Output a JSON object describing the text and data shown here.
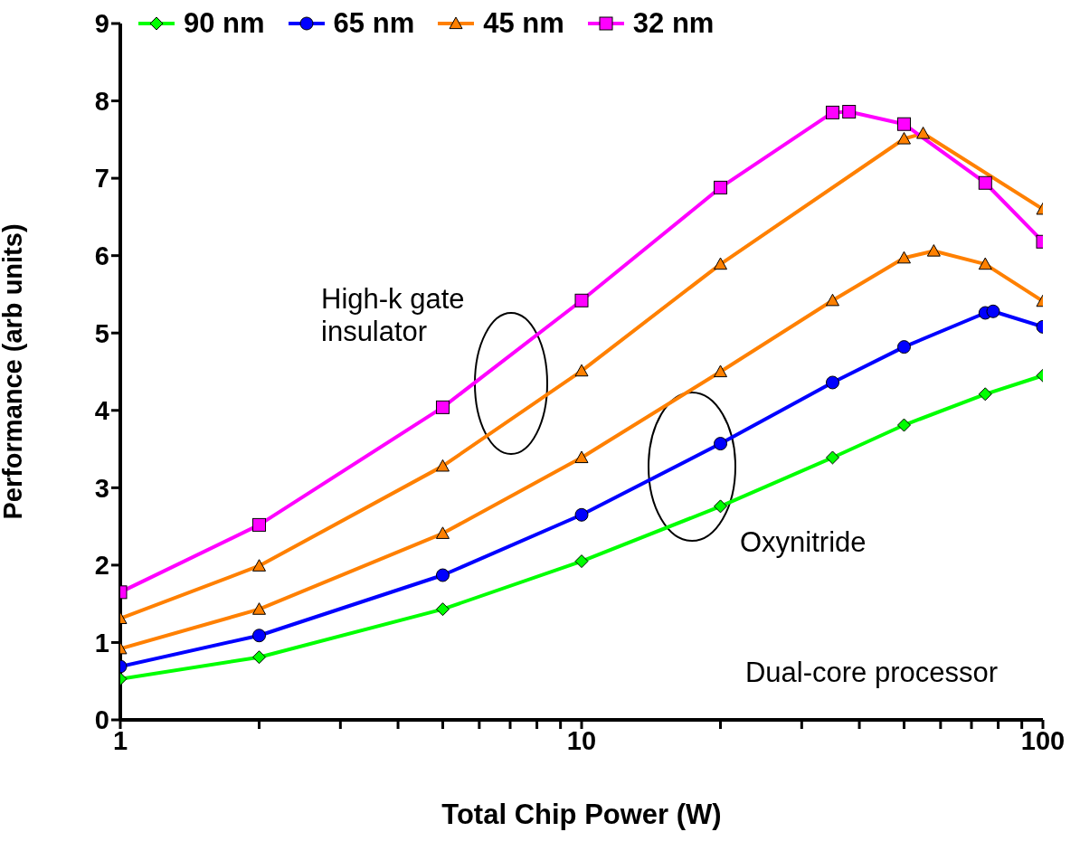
{
  "chart_data": {
    "type": "line",
    "xlabel": "Total Chip Power (W)",
    "ylabel": "Performance (arb units)",
    "log": "x",
    "xlim": [
      1,
      100
    ],
    "xticks": [
      1,
      {
        "value": 2,
        "label": null
      },
      {
        "value": 3,
        "label": null
      },
      {
        "value": 4,
        "label": null
      },
      {
        "value": 5,
        "label": null
      },
      {
        "value": 6,
        "label": null
      },
      {
        "value": 7,
        "label": null
      },
      {
        "value": 8,
        "label": null
      },
      {
        "value": 9,
        "label": null
      },
      10,
      {
        "value": 20,
        "label": null
      },
      {
        "value": 30,
        "label": null
      },
      {
        "value": 40,
        "label": null
      },
      {
        "value": 50,
        "label": null
      },
      {
        "value": 60,
        "label": null
      },
      {
        "value": 70,
        "label": null
      },
      {
        "value": 80,
        "label": null
      },
      {
        "value": 90,
        "label": null
      },
      100
    ],
    "ylim": [
      0,
      9
    ],
    "yticks": [
      0,
      1,
      2,
      3,
      4,
      5,
      6,
      7,
      8,
      9
    ],
    "legend": "top",
    "line_style": "solid",
    "series": [
      {
        "name": "90 nm",
        "color": "#00ff00",
        "marker": "diamond",
        "x": [
          1,
          2,
          5,
          10,
          20,
          35,
          50,
          75,
          100
        ],
        "values": [
          0.53,
          0.81,
          1.43,
          2.05,
          2.76,
          3.39,
          3.81,
          4.21,
          4.45
        ]
      },
      {
        "name": "65 nm",
        "color": "#0000ff",
        "marker": "circle",
        "x": [
          1,
          2,
          5,
          10,
          20,
          35,
          50,
          75,
          78,
          100
        ],
        "values": [
          0.69,
          1.09,
          1.87,
          2.65,
          3.57,
          4.36,
          4.82,
          5.26,
          5.28,
          5.08
        ]
      },
      {
        "name": "45 nm",
        "color": "#ff8000",
        "marker": "triangle",
        "x": [
          1,
          2,
          5,
          10,
          20,
          35,
          50,
          58,
          75,
          100
        ],
        "values": [
          0.92,
          1.43,
          2.41,
          3.39,
          4.5,
          5.42,
          5.97,
          6.06,
          5.89,
          5.41
        ]
      },
      {
        "color": "#ff8000",
        "marker": "triangle",
        "x": [
          1,
          2,
          5,
          10,
          20,
          50,
          55,
          100
        ],
        "values": [
          1.31,
          1.99,
          3.28,
          4.51,
          5.89,
          7.51,
          7.58,
          6.6
        ]
      },
      {
        "name": "32 nm",
        "color": "#ff00ff",
        "marker": "square",
        "x": [
          1,
          2,
          5,
          10,
          20,
          35,
          38,
          50,
          75,
          100
        ],
        "values": [
          1.65,
          2.52,
          4.04,
          5.42,
          6.88,
          7.85,
          7.86,
          7.7,
          6.94,
          6.18
        ]
      }
    ],
    "annotations": [
      "High-k gate insulator",
      "Oxynitride",
      "Dual-core processor"
    ]
  }
}
